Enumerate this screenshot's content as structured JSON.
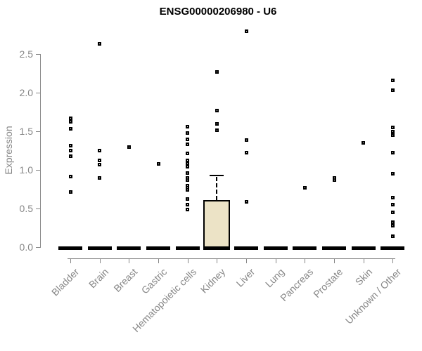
{
  "chart_data": {
    "type": "boxplot",
    "title": "ENSG00000206980 - U6",
    "xlabel": "",
    "ylabel": "Expression",
    "ylim": [
      0,
      2.5
    ],
    "yticks": [
      0,
      0.5,
      1,
      1.5,
      2,
      2.5
    ],
    "grid": false,
    "legend": "none",
    "categories": [
      "Bladder",
      "Brain",
      "Breast",
      "Gastric",
      "Hematopoietic cells",
      "Kidney",
      "Liver",
      "Lung",
      "Pancreas",
      "Prostate",
      "Skin",
      "Unknown / Other"
    ],
    "groups": [
      {
        "category": "Bladder",
        "box": {
          "q1": 0,
          "median": 0,
          "q3": 0
        },
        "points": [
          1.67,
          1.62,
          1.53,
          1.31,
          1.25,
          1.18,
          0.91,
          0.71
        ]
      },
      {
        "category": "Brain",
        "box": {
          "q1": 0,
          "median": 0,
          "q3": 0
        },
        "points": [
          2.63,
          1.25,
          1.12,
          1.07,
          0.9
        ]
      },
      {
        "category": "Breast",
        "box": {
          "q1": 0,
          "median": 0,
          "q3": 0
        },
        "points": [
          1.3
        ]
      },
      {
        "category": "Gastric",
        "box": {
          "q1": 0,
          "median": 0,
          "q3": 0
        },
        "points": [
          1.08
        ]
      },
      {
        "category": "Hematopoietic cells",
        "box": {
          "q1": 0,
          "median": 0,
          "q3": 0
        },
        "points": [
          1.56,
          1.48,
          1.4,
          1.33,
          1.21,
          1.12,
          1.09,
          1.04,
          0.96,
          0.9,
          0.87,
          0.8,
          0.77,
          0.74,
          0.62,
          0.55,
          0.49
        ]
      },
      {
        "category": "Kidney",
        "box": {
          "q1": 0,
          "median": 0,
          "q3": 0.61,
          "whisker_high": 0.92
        },
        "points": [
          2.27,
          1.77,
          1.6,
          1.51
        ]
      },
      {
        "category": "Liver",
        "box": {
          "q1": 0,
          "median": 0,
          "q3": 0
        },
        "points": [
          2.8,
          1.39,
          1.22,
          0.59
        ]
      },
      {
        "category": "Lung",
        "box": {
          "q1": 0,
          "median": 0,
          "q3": 0
        },
        "points": []
      },
      {
        "category": "Pancreas",
        "box": {
          "q1": 0,
          "median": 0,
          "q3": 0
        },
        "points": [
          0.77
        ]
      },
      {
        "category": "Prostate",
        "box": {
          "q1": 0,
          "median": 0,
          "q3": 0
        },
        "points": [
          0.9,
          0.87
        ]
      },
      {
        "category": "Skin",
        "box": {
          "q1": 0,
          "median": 0,
          "q3": 0
        },
        "points": [
          1.35
        ]
      },
      {
        "category": "Unknown / Other",
        "box": {
          "q1": 0,
          "median": 0,
          "q3": 0
        },
        "points": [
          2.16,
          2.03,
          1.55,
          1.5,
          1.45,
          1.22,
          0.95,
          0.64,
          0.55,
          0.45,
          0.32,
          0.28,
          0.14
        ]
      }
    ],
    "colors": {
      "box_fill": "#ece3c6",
      "box_border": "#000000",
      "point": "#000000",
      "axis": "#878787",
      "title": "#000000"
    }
  }
}
